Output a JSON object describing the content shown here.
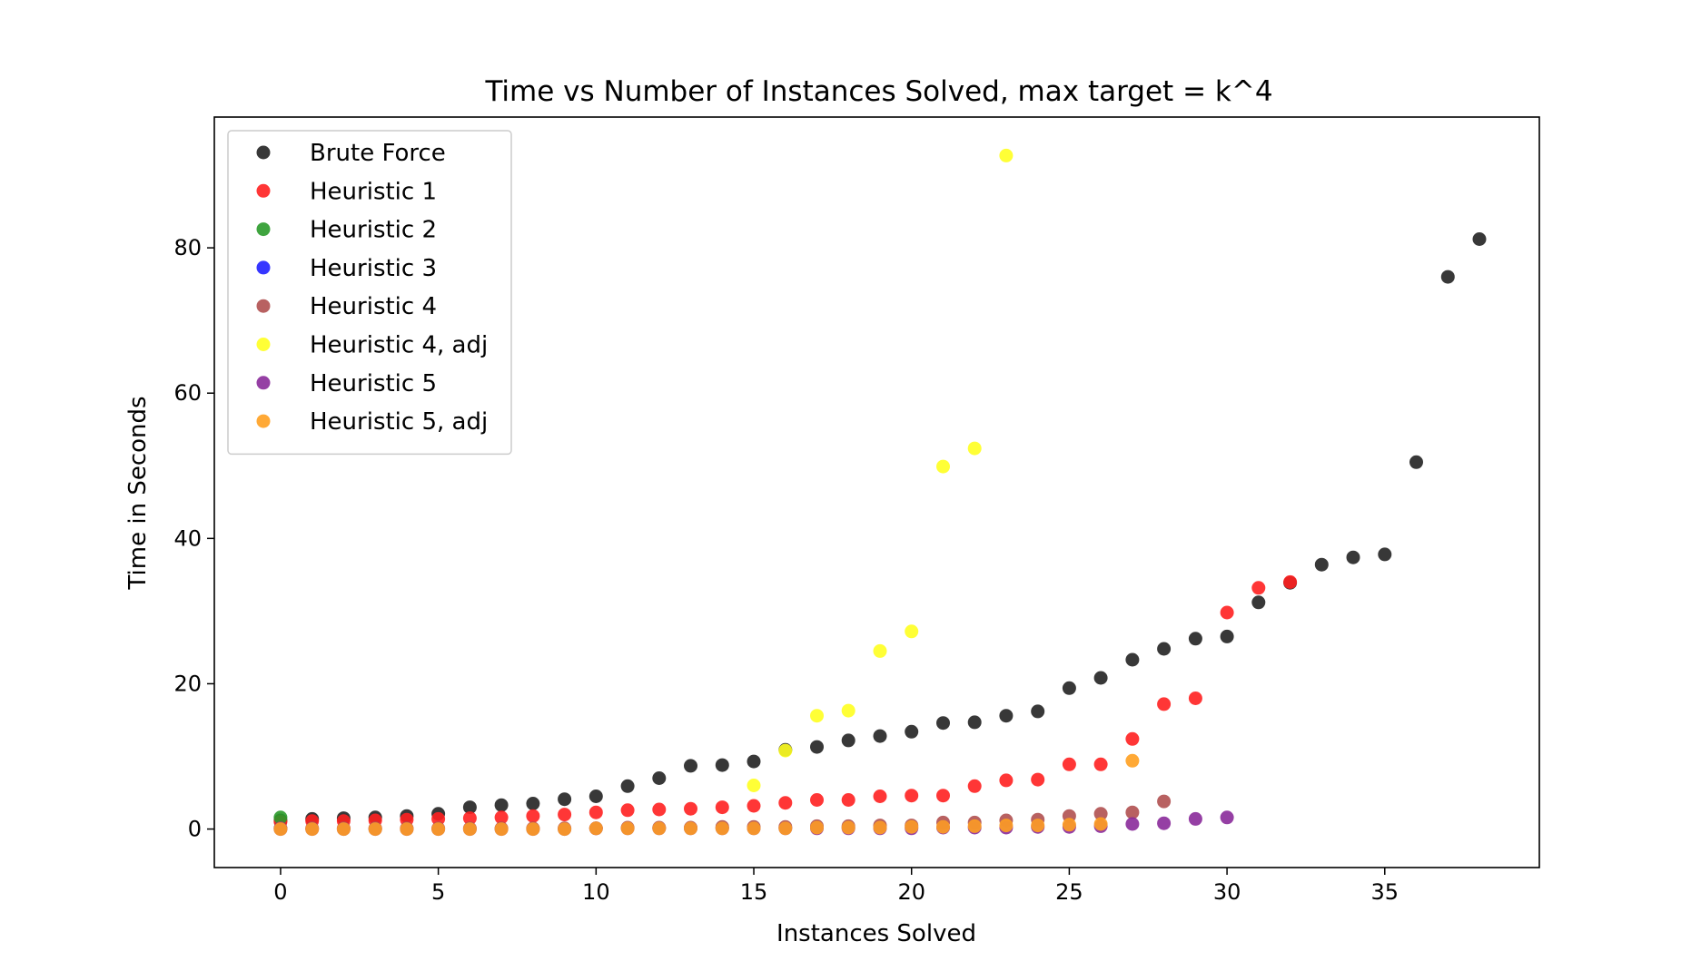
{
  "chart_data": {
    "type": "scatter",
    "title": "Time vs Number of Instances Solved, max target = k^4",
    "xlabel": "Instances Solved",
    "ylabel": "Time in Seconds",
    "xlim": [
      -2.1,
      39.9
    ],
    "ylim": [
      -5.3,
      98.0
    ],
    "xticks": [
      0,
      5,
      10,
      15,
      20,
      25,
      30,
      35
    ],
    "yticks": [
      0,
      20,
      40,
      60,
      80
    ],
    "grid": false,
    "legend_position": "upper-left",
    "series": [
      {
        "name": "Brute Force",
        "color": "#222222",
        "x": [
          0,
          1,
          2,
          3,
          4,
          5,
          6,
          7,
          8,
          9,
          10,
          11,
          12,
          13,
          14,
          15,
          16,
          17,
          18,
          19,
          20,
          21,
          22,
          23,
          24,
          25,
          26,
          27,
          28,
          29,
          30,
          31,
          32,
          33,
          34,
          35,
          36,
          37,
          38
        ],
        "y": [
          1.2,
          1.4,
          1.5,
          1.6,
          1.8,
          2.1,
          3.0,
          3.3,
          3.5,
          4.1,
          4.5,
          5.9,
          7.0,
          8.7,
          8.8,
          9.3,
          10.9,
          11.3,
          12.2,
          12.8,
          13.4,
          14.6,
          14.7,
          15.6,
          16.2,
          19.4,
          20.8,
          23.3,
          24.8,
          26.2,
          26.5,
          31.2,
          33.9,
          36.4,
          37.4,
          37.8,
          50.5,
          76.0,
          81.2
        ]
      },
      {
        "name": "Heuristic 1",
        "color": "#ff2020",
        "x": [
          0,
          1,
          2,
          3,
          4,
          5,
          6,
          7,
          8,
          9,
          10,
          11,
          12,
          13,
          14,
          15,
          16,
          17,
          18,
          19,
          20,
          21,
          22,
          23,
          24,
          25,
          26,
          27,
          28,
          29,
          30,
          31,
          32
        ],
        "y": [
          1.0,
          1.1,
          1.1,
          1.2,
          1.3,
          1.4,
          1.5,
          1.6,
          1.8,
          2.0,
          2.3,
          2.6,
          2.7,
          2.8,
          3.0,
          3.2,
          3.6,
          4.0,
          4.0,
          4.5,
          4.6,
          4.6,
          5.9,
          6.7,
          6.8,
          8.9,
          8.9,
          12.4,
          17.2,
          18.0,
          29.8,
          33.2,
          34.0
        ]
      },
      {
        "name": "Heuristic 2",
        "color": "#2a9a2a",
        "x": [
          0
        ],
        "y": [
          1.6
        ]
      },
      {
        "name": "Heuristic 3",
        "color": "#2020ff",
        "x": [
          0
        ],
        "y": [
          0.1
        ]
      },
      {
        "name": "Heuristic 4",
        "color": "#b05050",
        "x": [
          0,
          1,
          2,
          3,
          4,
          5,
          6,
          7,
          8,
          9,
          10,
          11,
          12,
          13,
          14,
          15,
          16,
          17,
          18,
          19,
          20,
          21,
          22,
          23,
          24,
          25,
          26,
          27,
          28
        ],
        "y": [
          0.1,
          0.1,
          0.1,
          0.1,
          0.1,
          0.1,
          0.1,
          0.1,
          0.1,
          0.1,
          0.1,
          0.2,
          0.2,
          0.2,
          0.3,
          0.3,
          0.3,
          0.4,
          0.4,
          0.5,
          0.5,
          0.9,
          0.9,
          1.2,
          1.3,
          1.8,
          2.1,
          2.3,
          3.8
        ]
      },
      {
        "name": "Heuristic 4, adj",
        "color": "#ffff20",
        "x": [
          15,
          16,
          17,
          18,
          19,
          20,
          21,
          22,
          23
        ],
        "y": [
          6.0,
          10.8,
          15.6,
          16.3,
          24.5,
          27.2,
          49.9,
          52.4,
          92.7
        ]
      },
      {
        "name": "Heuristic 5",
        "color": "#8a2a9a",
        "x": [
          0,
          1,
          2,
          3,
          4,
          5,
          6,
          7,
          8,
          9,
          10,
          11,
          12,
          13,
          14,
          15,
          16,
          17,
          18,
          19,
          20,
          21,
          22,
          23,
          24,
          25,
          26,
          27,
          28,
          29,
          30
        ],
        "y": [
          0.0,
          0.0,
          0.0,
          0.0,
          0.0,
          0.0,
          0.0,
          0.0,
          0.0,
          0.0,
          0.1,
          0.1,
          0.1,
          0.1,
          0.1,
          0.1,
          0.1,
          0.1,
          0.1,
          0.1,
          0.1,
          0.2,
          0.2,
          0.2,
          0.3,
          0.3,
          0.4,
          0.7,
          0.8,
          1.4,
          1.6
        ]
      },
      {
        "name": "Heuristic 5, adj",
        "color": "#ffa020",
        "x": [
          0,
          1,
          2,
          3,
          4,
          5,
          6,
          7,
          8,
          9,
          10,
          11,
          12,
          13,
          14,
          15,
          16,
          17,
          18,
          19,
          20,
          21,
          22,
          23,
          24,
          25,
          26,
          27
        ],
        "y": [
          0.0,
          0.0,
          0.0,
          0.0,
          0.0,
          0.0,
          0.0,
          0.0,
          0.0,
          0.0,
          0.1,
          0.1,
          0.1,
          0.1,
          0.1,
          0.1,
          0.1,
          0.2,
          0.2,
          0.2,
          0.3,
          0.3,
          0.4,
          0.5,
          0.5,
          0.6,
          0.7,
          9.4
        ]
      }
    ]
  }
}
